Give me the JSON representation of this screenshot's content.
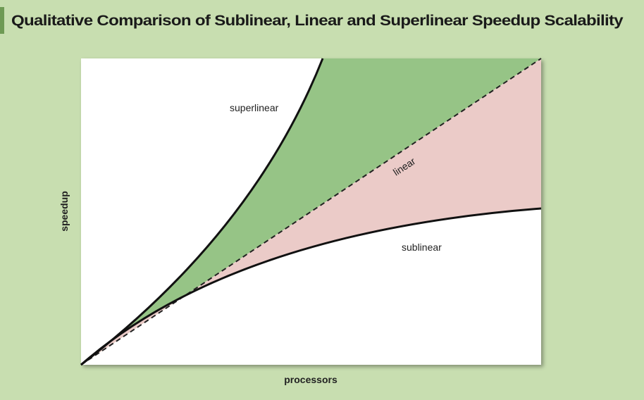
{
  "header": {
    "title": "Qualitative Comparison of Sublinear, Linear and Superlinear Speedup Scalability"
  },
  "diagram": {
    "x_label": "processors",
    "y_label": "speedup",
    "curves": [
      {
        "label": "superlinear"
      },
      {
        "label": "linear"
      },
      {
        "label": "sublinear"
      }
    ]
  }
}
